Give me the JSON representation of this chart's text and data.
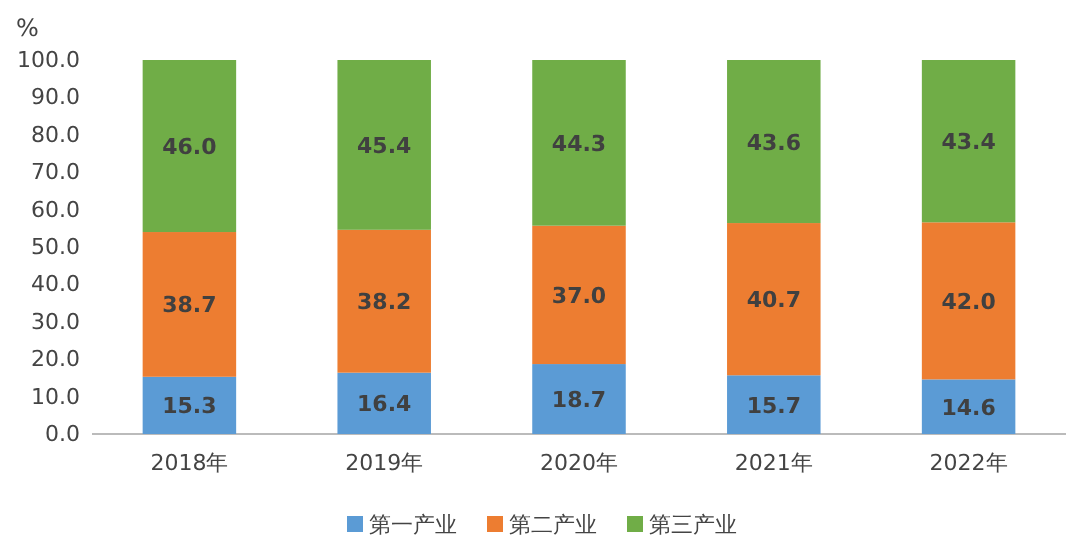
{
  "chart_data": {
    "type": "bar",
    "stacked": true,
    "ylabel": "%",
    "categories": [
      "2018年",
      "2019年",
      "2020年",
      "2021年",
      "2022年"
    ],
    "series": [
      {
        "name": "第一产业",
        "color": "#5b9bd5",
        "values": [
          15.3,
          16.4,
          18.7,
          15.7,
          14.6
        ],
        "value_labels": [
          "15.3",
          "16.4",
          "18.7",
          "15.7",
          "14.6"
        ]
      },
      {
        "name": "第二产业",
        "color": "#ed7d31",
        "values": [
          38.7,
          38.2,
          37.0,
          40.7,
          42.0
        ],
        "value_labels": [
          "38.7",
          "38.2",
          "37.0",
          "40.7",
          "42.0"
        ]
      },
      {
        "name": "第三产业",
        "color": "#70ad47",
        "values": [
          46.0,
          45.4,
          44.3,
          43.6,
          43.4
        ],
        "value_labels": [
          "46.0",
          "45.4",
          "44.3",
          "43.6",
          "43.4"
        ]
      }
    ],
    "ylim": [
      0,
      100
    ],
    "yticks": [
      {
        "value": 0,
        "label": "0.0"
      },
      {
        "value": 10,
        "label": "10.0"
      },
      {
        "value": 20,
        "label": "20.0"
      },
      {
        "value": 30,
        "label": "30.0"
      },
      {
        "value": 40,
        "label": "40.0"
      },
      {
        "value": 50,
        "label": "50.0"
      },
      {
        "value": 60,
        "label": "60.0"
      },
      {
        "value": 70,
        "label": "70.0"
      },
      {
        "value": 80,
        "label": "80.0"
      },
      {
        "value": 90,
        "label": "90.0"
      },
      {
        "value": 100,
        "label": "100.0"
      }
    ],
    "legend": "bottom"
  }
}
